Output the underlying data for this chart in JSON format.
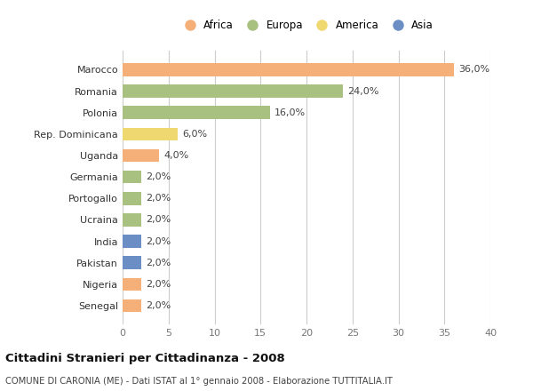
{
  "categories": [
    "Senegal",
    "Nigeria",
    "Pakistan",
    "India",
    "Ucraina",
    "Portogallo",
    "Germania",
    "Uganda",
    "Rep. Dominicana",
    "Polonia",
    "Romania",
    "Marocco"
  ],
  "values": [
    2.0,
    2.0,
    2.0,
    2.0,
    2.0,
    2.0,
    2.0,
    4.0,
    6.0,
    16.0,
    24.0,
    36.0
  ],
  "colors": [
    "#F5B07A",
    "#F5B07A",
    "#6B8FC4",
    "#6B8FC4",
    "#A8C080",
    "#A8C080",
    "#A8C080",
    "#F5B07A",
    "#F0D870",
    "#A8C080",
    "#A8C080",
    "#F5B07A"
  ],
  "labels": [
    "2,0%",
    "2,0%",
    "2,0%",
    "2,0%",
    "2,0%",
    "2,0%",
    "2,0%",
    "4,0%",
    "6,0%",
    "16,0%",
    "24,0%",
    "36,0%"
  ],
  "xlim": [
    0,
    40
  ],
  "xticks": [
    0,
    5,
    10,
    15,
    20,
    25,
    30,
    35,
    40
  ],
  "legend_items": [
    {
      "label": "Africa",
      "color": "#F5B07A"
    },
    {
      "label": "Europa",
      "color": "#A8C080"
    },
    {
      "label": "America",
      "color": "#F0D870"
    },
    {
      "label": "Asia",
      "color": "#6B8FC4"
    }
  ],
  "title": "Cittadini Stranieri per Cittadinanza - 2008",
  "subtitle": "COMUNE DI CARONIA (ME) - Dati ISTAT al 1° gennaio 2008 - Elaborazione TUTTITALIA.IT",
  "bg_color": "#ffffff",
  "bar_height": 0.6
}
